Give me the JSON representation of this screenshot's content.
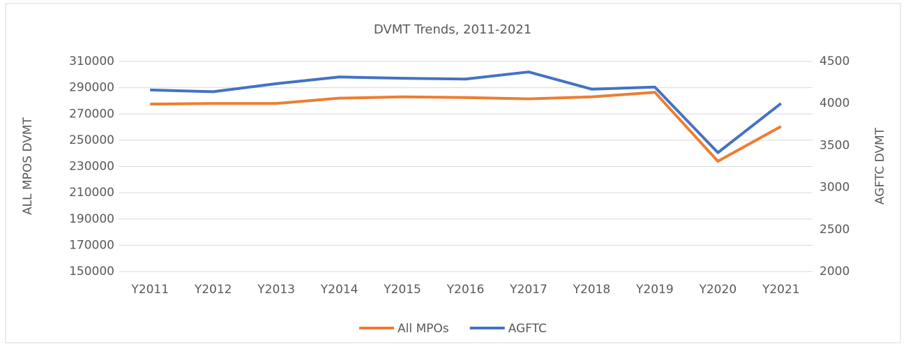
{
  "chart_data": {
    "type": "line",
    "title": "DVMT Trends, 2011-2021",
    "categories": [
      "Y2011",
      "Y2012",
      "Y2013",
      "Y2014",
      "Y2015",
      "Y2016",
      "Y2017",
      "Y2018",
      "Y2019",
      "Y2020",
      "Y2021"
    ],
    "series": [
      {
        "name": "All MPOs",
        "color": "#ED7D31",
        "values": [
          277500,
          278000,
          278000,
          282000,
          283000,
          282500,
          281500,
          283000,
          286500,
          234000,
          260500
        ]
      },
      {
        "name": "AGFTC",
        "color": "#4472C4",
        "axis": "y2",
        "values": [
          4160,
          4140,
          4235,
          4315,
          4300,
          4290,
          4375,
          4170,
          4195,
          3415,
          4000
        ]
      }
    ],
    "ylabel": "ALL MPOS DVMT",
    "y2label": "AGFTC DVMT",
    "ylim": [
      150000,
      310000
    ],
    "yticks": [
      150000,
      170000,
      190000,
      210000,
      230000,
      250000,
      270000,
      290000,
      310000
    ],
    "y2lim": [
      2000,
      4500
    ],
    "y2ticks": [
      2000,
      2500,
      3000,
      3500,
      4000,
      4500
    ],
    "grid": true,
    "legend": "bottom"
  }
}
